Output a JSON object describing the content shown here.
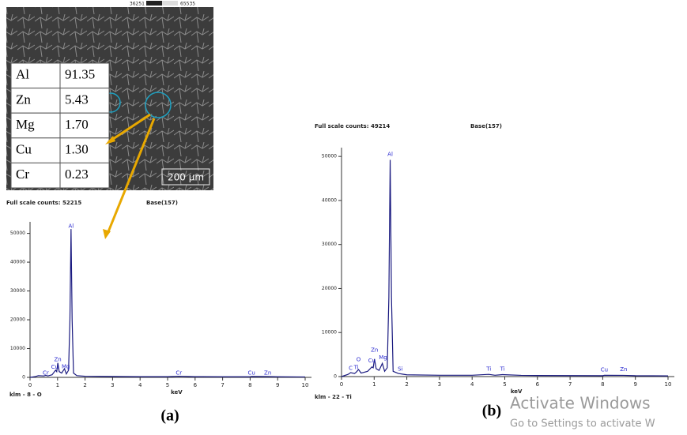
{
  "colorbar": {
    "min_label": 36251,
    "max_label": 65535
  },
  "scale_bar": "200 µm",
  "table": {
    "rows": [
      [
        "Al",
        "91.35"
      ],
      [
        "Zn",
        "5.43"
      ],
      [
        "Mg",
        "1.70"
      ],
      [
        "Cu",
        "1.30"
      ],
      [
        "Cr",
        "0.23"
      ]
    ]
  },
  "captions": [
    "(a)",
    "(b)"
  ],
  "watermark": {
    "title": "Activate Windows",
    "text": "Go to Settings to activate W"
  },
  "chart_data": [
    {
      "type": "line",
      "title": "Full scale counts: 52215",
      "subtitle": "Base(157)",
      "xlabel": "keV",
      "cursor_label": "klm - 8 - O",
      "x": [
        0,
        0.2,
        0.3,
        0.5,
        0.57,
        0.65,
        0.8,
        0.93,
        0.97,
        1.01,
        1.06,
        1.15,
        1.25,
        1.32,
        1.4,
        1.45,
        1.49,
        1.53,
        1.58,
        1.7,
        2,
        3,
        4,
        5,
        5.41,
        6,
        7,
        8,
        8.05,
        8.64,
        9,
        10
      ],
      "values": [
        0,
        300,
        600,
        500,
        700,
        500,
        900,
        2500,
        2000,
        5000,
        2000,
        1500,
        3000,
        1200,
        2500,
        20000,
        51500,
        20000,
        1500,
        600,
        400,
        300,
        250,
        250,
        400,
        250,
        200,
        200,
        300,
        280,
        200,
        150
      ],
      "color": "#1a1a80",
      "label_color": "#2b2bd0",
      "xlim": [
        0,
        10
      ],
      "ylim": [
        0,
        54000
      ],
      "xticks": [
        0,
        1,
        2,
        3,
        4,
        5,
        6,
        7,
        8,
        9,
        10
      ],
      "yticks": [
        0,
        10000,
        20000,
        30000,
        40000,
        50000
      ],
      "annotations": [
        {
          "text": "Cr",
          "x": 0.57,
          "y": 1500
        },
        {
          "text": "Cu",
          "x": 0.9,
          "y": 3500
        },
        {
          "text": "Zn",
          "x": 1.01,
          "y": 6200
        },
        {
          "text": "Mg",
          "x": 1.3,
          "y": 3700
        },
        {
          "text": "Al",
          "x": 1.49,
          "y": 52500
        },
        {
          "text": "Cr",
          "x": 5.41,
          "y": 1500
        },
        {
          "text": "Cu",
          "x": 8.05,
          "y": 1500
        },
        {
          "text": "Zn",
          "x": 8.64,
          "y": 1500
        }
      ]
    },
    {
      "type": "line",
      "title": "Full scale counts: 49214",
      "subtitle": "Base(157)",
      "xlabel": "keV",
      "cursor_label": "klm - 22 - Ti",
      "x": [
        0,
        0.2,
        0.28,
        0.4,
        0.45,
        0.52,
        0.6,
        0.8,
        0.93,
        0.97,
        1.01,
        1.06,
        1.15,
        1.25,
        1.32,
        1.4,
        1.45,
        1.49,
        1.53,
        1.58,
        1.74,
        2,
        3,
        4,
        4.51,
        4.7,
        4.93,
        5.5,
        6,
        7,
        8,
        8.05,
        8.64,
        9,
        10
      ],
      "values": [
        0,
        500,
        900,
        700,
        1000,
        1600,
        800,
        1200,
        2200,
        2000,
        4000,
        1800,
        1400,
        3000,
        1200,
        2000,
        18000,
        49214,
        18000,
        1200,
        700,
        400,
        300,
        300,
        500,
        300,
        450,
        280,
        250,
        220,
        200,
        300,
        280,
        200,
        150
      ],
      "color": "#1a1a80",
      "label_color": "#2b2bd0",
      "xlim": [
        0,
        10
      ],
      "ylim": [
        0,
        52000
      ],
      "xticks": [
        0,
        1,
        2,
        3,
        4,
        5,
        6,
        7,
        8,
        9,
        10
      ],
      "yticks": [
        0,
        10000,
        20000,
        30000,
        40000,
        50000
      ],
      "annotations": [
        {
          "text": "C",
          "x": 0.28,
          "y": 1900
        },
        {
          "text": "Ti",
          "x": 0.45,
          "y": 2100
        },
        {
          "text": "O",
          "x": 0.52,
          "y": 3900
        },
        {
          "text": "Cu",
          "x": 0.93,
          "y": 3600
        },
        {
          "text": "Zn",
          "x": 1.01,
          "y": 6000
        },
        {
          "text": "Mg",
          "x": 1.27,
          "y": 4300
        },
        {
          "text": "Al",
          "x": 1.49,
          "y": 50500
        },
        {
          "text": "Si",
          "x": 1.8,
          "y": 1700
        },
        {
          "text": "Ti",
          "x": 4.51,
          "y": 1700
        },
        {
          "text": "Ti",
          "x": 4.93,
          "y": 1700
        },
        {
          "text": "Cu",
          "x": 8.05,
          "y": 1500
        },
        {
          "text": "Zn",
          "x": 8.64,
          "y": 1600
        }
      ]
    }
  ]
}
